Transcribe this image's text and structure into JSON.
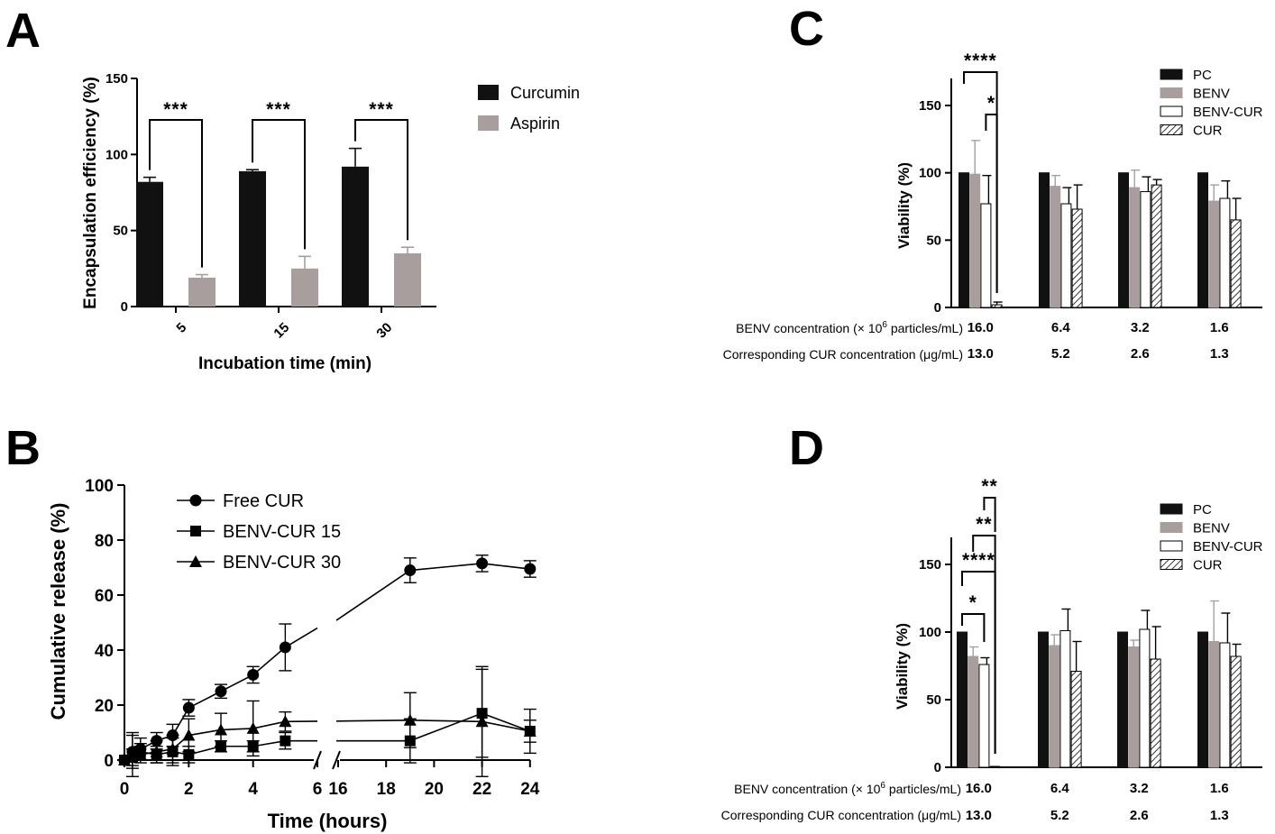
{
  "panels": [
    {
      "letter": "A"
    },
    {
      "letter": "B"
    },
    {
      "letter": "C"
    },
    {
      "letter": "D"
    }
  ],
  "chart_data": [
    {
      "panel": "A",
      "type": "bar",
      "xlabel": "Incubation time (min)",
      "ylabel": "Encapsulation efficiency (%)",
      "ylim": [
        0,
        150
      ],
      "yticks": [
        "0",
        "50",
        "100",
        "150"
      ],
      "categories": [
        "5",
        "15",
        "30"
      ],
      "series": [
        {
          "name": "Curcumin",
          "color": "#111111",
          "values": [
            82,
            89,
            92
          ],
          "errors": [
            3,
            1,
            12
          ]
        },
        {
          "name": "Aspirin",
          "color": "#a89e9e",
          "values": [
            19,
            25,
            35
          ],
          "errors": [
            2,
            8,
            4
          ]
        }
      ],
      "significance": [
        "***",
        "***",
        "***"
      ],
      "legend": "right"
    },
    {
      "panel": "B",
      "type": "line",
      "xlabel": "Time (hours)",
      "ylabel": "Cumulative release (%)",
      "ylim": [
        0,
        100
      ],
      "yticks": [
        "0",
        "20",
        "40",
        "60",
        "80",
        "100"
      ],
      "xticks_left": [
        "0",
        "2",
        "4",
        "6"
      ],
      "xticks_right": [
        "16",
        "18",
        "20",
        "22",
        "24"
      ],
      "x_axis_break": [
        6,
        16
      ],
      "series": [
        {
          "name": "Free CUR",
          "marker": "circle",
          "points": [
            [
              0,
              0,
              0
            ],
            [
              0.25,
              3,
              6
            ],
            [
              0.5,
              4,
              4
            ],
            [
              1,
              7,
              3
            ],
            [
              1.5,
              9,
              4
            ],
            [
              2,
              19,
              3
            ],
            [
              3,
              25,
              2.5
            ],
            [
              4,
              31,
              3
            ],
            [
              5,
              41,
              8.5
            ],
            [
              19,
              69,
              4.5
            ],
            [
              22,
              71.5,
              3
            ],
            [
              24,
              69.5,
              3
            ]
          ]
        },
        {
          "name": "BENV-CUR 15",
          "marker": "square",
          "points": [
            [
              0,
              0,
              0
            ],
            [
              0.25,
              2,
              8
            ],
            [
              0.5,
              3,
              3
            ],
            [
              1,
              2,
              3
            ],
            [
              1.5,
              3,
              5
            ],
            [
              2,
              2,
              3
            ],
            [
              3,
              5,
              2
            ],
            [
              4,
              5,
              2
            ],
            [
              5,
              7,
              3
            ],
            [
              19,
              7,
              8
            ],
            [
              22,
              17,
              16
            ],
            [
              24,
              10.5,
              8
            ]
          ]
        },
        {
          "name": "BENV-CUR 30",
          "marker": "triangle",
          "points": [
            [
              0,
              0,
              0
            ],
            [
              0.25,
              1,
              3
            ],
            [
              0.5,
              2,
              3
            ],
            [
              1,
              3,
              4
            ],
            [
              1.5,
              4,
              5
            ],
            [
              2,
              9,
              6
            ],
            [
              3,
              11,
              6
            ],
            [
              4,
              11.5,
              10
            ],
            [
              5,
              14,
              3.5
            ],
            [
              19,
              14.5,
              10
            ],
            [
              22,
              14,
              20
            ],
            [
              24,
              10.5,
              4
            ]
          ]
        }
      ],
      "legend": "top-left"
    },
    {
      "panel": "C",
      "type": "bar",
      "ylabel": "Viability (%)",
      "ylim": [
        0,
        150
      ],
      "yticks": [
        "0",
        "50",
        "100",
        "150"
      ],
      "row_labels": [
        "BENV concentration (× 10",
        "6",
        " particles/mL)",
        "Corresponding CUR concentration (μg/mL)"
      ],
      "benv_conc": [
        "16.0",
        "6.4",
        "3.2",
        "1.6"
      ],
      "cur_conc": [
        "13.0",
        "5.2",
        "2.6",
        "1.3"
      ],
      "series": [
        {
          "name": "PC",
          "style": "solid-black",
          "values": [
            100,
            100,
            100,
            100
          ],
          "errors": [
            0,
            0,
            0,
            0
          ]
        },
        {
          "name": "BENV",
          "style": "gray",
          "values": [
            99,
            90,
            89,
            79
          ],
          "errors": [
            25,
            8,
            13,
            12
          ]
        },
        {
          "name": "BENV-CUR",
          "style": "white",
          "values": [
            77,
            77,
            86,
            81
          ],
          "errors": [
            21,
            12,
            11,
            13
          ]
        },
        {
          "name": "CUR",
          "style": "hatched",
          "values": [
            2,
            73,
            91,
            65
          ],
          "errors": [
            2,
            18,
            4,
            16
          ]
        }
      ],
      "significance": [
        "****",
        "*"
      ],
      "legend": "top-right"
    },
    {
      "panel": "D",
      "type": "bar",
      "ylabel": "Viability (%)",
      "ylim": [
        0,
        150
      ],
      "yticks": [
        "0",
        "50",
        "100",
        "150"
      ],
      "row_labels": [
        "BENV concentration (× 10",
        "6",
        " particles/mL)",
        "Corresponding CUR concentration (μg/mL)"
      ],
      "benv_conc": [
        "16.0",
        "6.4",
        "3.2",
        "1.6"
      ],
      "cur_conc": [
        "13.0",
        "5.2",
        "2.6",
        "1.3"
      ],
      "series": [
        {
          "name": "PC",
          "style": "solid-black",
          "values": [
            100,
            100,
            100,
            100
          ],
          "errors": [
            0,
            0,
            0,
            0
          ]
        },
        {
          "name": "BENV",
          "style": "gray",
          "values": [
            82,
            90,
            89,
            93
          ],
          "errors": [
            7,
            8,
            5,
            30
          ]
        },
        {
          "name": "BENV-CUR",
          "style": "white",
          "values": [
            76,
            101,
            102,
            92
          ],
          "errors": [
            5,
            16,
            14,
            22
          ]
        },
        {
          "name": "CUR",
          "style": "hatched",
          "values": [
            0,
            71,
            80,
            82
          ],
          "errors": [
            0,
            22,
            24,
            9
          ]
        }
      ],
      "significance": [
        "*",
        "****",
        "**",
        "**"
      ],
      "legend": "top-right"
    }
  ]
}
